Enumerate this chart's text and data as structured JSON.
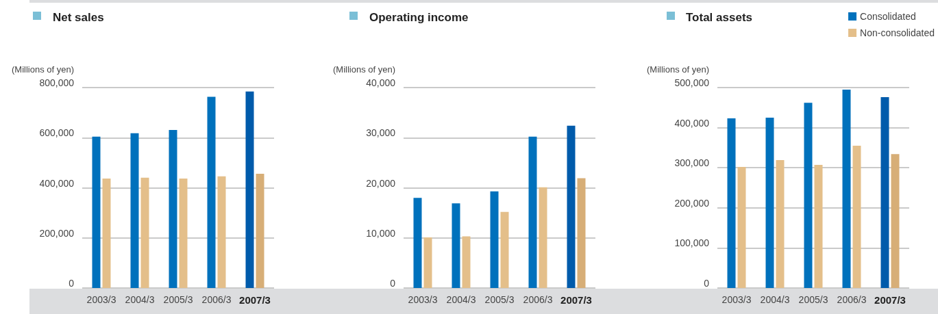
{
  "chart_data": [
    {
      "type": "bar",
      "title": "Net sales",
      "ylabel": "(Millions of yen)",
      "categories": [
        "2003/3",
        "2004/3",
        "2005/3",
        "2006/3",
        "2007/3"
      ],
      "ylim": [
        0,
        800000
      ],
      "yticks": [
        {
          "value": 0,
          "label": "0"
        },
        {
          "value": 200000,
          "label": "200,000"
        },
        {
          "value": 400000,
          "label": "400,000"
        },
        {
          "value": 600000,
          "label": "600,000"
        },
        {
          "value": 800000,
          "label": "800,000"
        }
      ],
      "grid": "y",
      "legend": false,
      "series": [
        {
          "color": "#0071bc",
          "colors": [
            "#0071bc",
            "#0071bc",
            "#0071bc",
            "#0071bc",
            "#005bab"
          ],
          "values": [
            604000,
            618000,
            631000,
            763000,
            784000
          ]
        },
        {
          "color": "#e4bf8a",
          "colors": [
            "#e4bf8a",
            "#e4bf8a",
            "#e4bf8a",
            "#e4bf8a",
            "#d7ae77"
          ],
          "values": [
            437000,
            440000,
            437000,
            446000,
            456000
          ]
        }
      ]
    },
    {
      "type": "bar",
      "title": "Operating income",
      "ylabel": "(Millions of yen)",
      "categories": [
        "2003/3",
        "2004/3",
        "2005/3",
        "2006/3",
        "2007/3"
      ],
      "ylim": [
        0,
        40000
      ],
      "yticks": [
        {
          "value": 0,
          "label": "0"
        },
        {
          "value": 10000,
          "label": "10,000"
        },
        {
          "value": 20000,
          "label": "20,000"
        },
        {
          "value": 30000,
          "label": "30,000"
        },
        {
          "value": 40000,
          "label": "40,000"
        }
      ],
      "grid": "y",
      "legend": false,
      "series": [
        {
          "color": "#0071bc",
          "colors": [
            "#0071bc",
            "#0071bc",
            "#0071bc",
            "#0071bc",
            "#005bab"
          ],
          "values": [
            18000,
            16900,
            19300,
            30200,
            32400
          ]
        },
        {
          "color": "#e4bf8a",
          "colors": [
            "#e4bf8a",
            "#e4bf8a",
            "#e4bf8a",
            "#e4bf8a",
            "#d7ae77"
          ],
          "values": [
            10100,
            10300,
            15200,
            20100,
            21900
          ]
        }
      ]
    },
    {
      "type": "bar",
      "title": "Total assets",
      "ylabel": "(Millions of yen)",
      "categories": [
        "2003/3",
        "2004/3",
        "2005/3",
        "2006/3",
        "2007/3"
      ],
      "ylim": [
        0,
        500000
      ],
      "yticks": [
        {
          "value": 0,
          "label": "0"
        },
        {
          "value": 100000,
          "label": "100,000"
        },
        {
          "value": 200000,
          "label": "200,000"
        },
        {
          "value": 300000,
          "label": "300,000"
        },
        {
          "value": 400000,
          "label": "400,000"
        },
        {
          "value": 500000,
          "label": "500,000"
        }
      ],
      "grid": "y",
      "legend": "top right",
      "series": [
        {
          "name": "Consolidated",
          "color": "#0071bc",
          "colors": [
            "#0071bc",
            "#0071bc",
            "#0071bc",
            "#0071bc",
            "#005bab"
          ],
          "values": [
            423000,
            425000,
            462000,
            495000,
            476000
          ]
        },
        {
          "name": "Non-consolidated",
          "color": "#e4bf8a",
          "colors": [
            "#e4bf8a",
            "#e4bf8a",
            "#e4bf8a",
            "#e4bf8a",
            "#d7ae77"
          ],
          "values": [
            302000,
            319000,
            307000,
            355000,
            334000
          ]
        }
      ]
    }
  ]
}
